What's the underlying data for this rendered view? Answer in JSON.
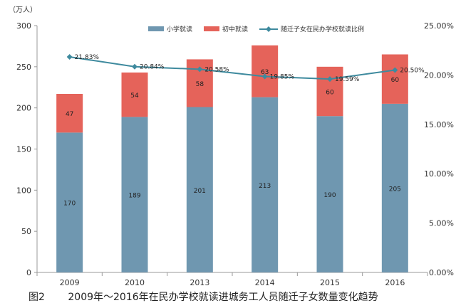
{
  "caption": {
    "figure_number": "图2",
    "text": "2009年～2016年在民办学校就读进城务工人员随迁子女数量变化趋势"
  },
  "chart_data": {
    "type": "bar",
    "stacked": true,
    "unit_label": "（万人）",
    "categories": [
      "2009",
      "2010",
      "2013",
      "2014",
      "2015",
      "2016"
    ],
    "series": [
      {
        "name": "小学就读",
        "type": "bar",
        "axis": "left",
        "color": "#6f97b0",
        "values": [
          170,
          189,
          201,
          213,
          190,
          205
        ],
        "data_labels": [
          "170",
          "189",
          "201",
          "213",
          "190",
          "205"
        ]
      },
      {
        "name": "初中就读",
        "type": "bar",
        "axis": "left",
        "color": "#e5635a",
        "values": [
          47,
          54,
          58,
          63,
          60,
          60
        ],
        "data_labels": [
          "47",
          "54",
          "58",
          "63",
          "60",
          "60"
        ]
      },
      {
        "name": "随迁子女在民办学校就读比例",
        "type": "line",
        "axis": "right",
        "color": "#3e8a9e",
        "values": [
          21.83,
          20.84,
          20.58,
          19.85,
          19.59,
          20.5
        ],
        "data_labels": [
          "21.83%",
          "20.84%",
          "20.58%",
          "19.85%",
          "19.59%",
          "20.50%"
        ]
      }
    ],
    "left_axis": {
      "min": 0,
      "max": 300,
      "ticks": [
        "0",
        "50",
        "100",
        "150",
        "200",
        "250",
        "300"
      ]
    },
    "right_axis": {
      "min": 0,
      "max": 25,
      "ticks": [
        "0.00%",
        "5.00%",
        "10.00%",
        "15.00%",
        "20.00%",
        "25.00%"
      ]
    },
    "grid": false,
    "legend_position": "top"
  }
}
